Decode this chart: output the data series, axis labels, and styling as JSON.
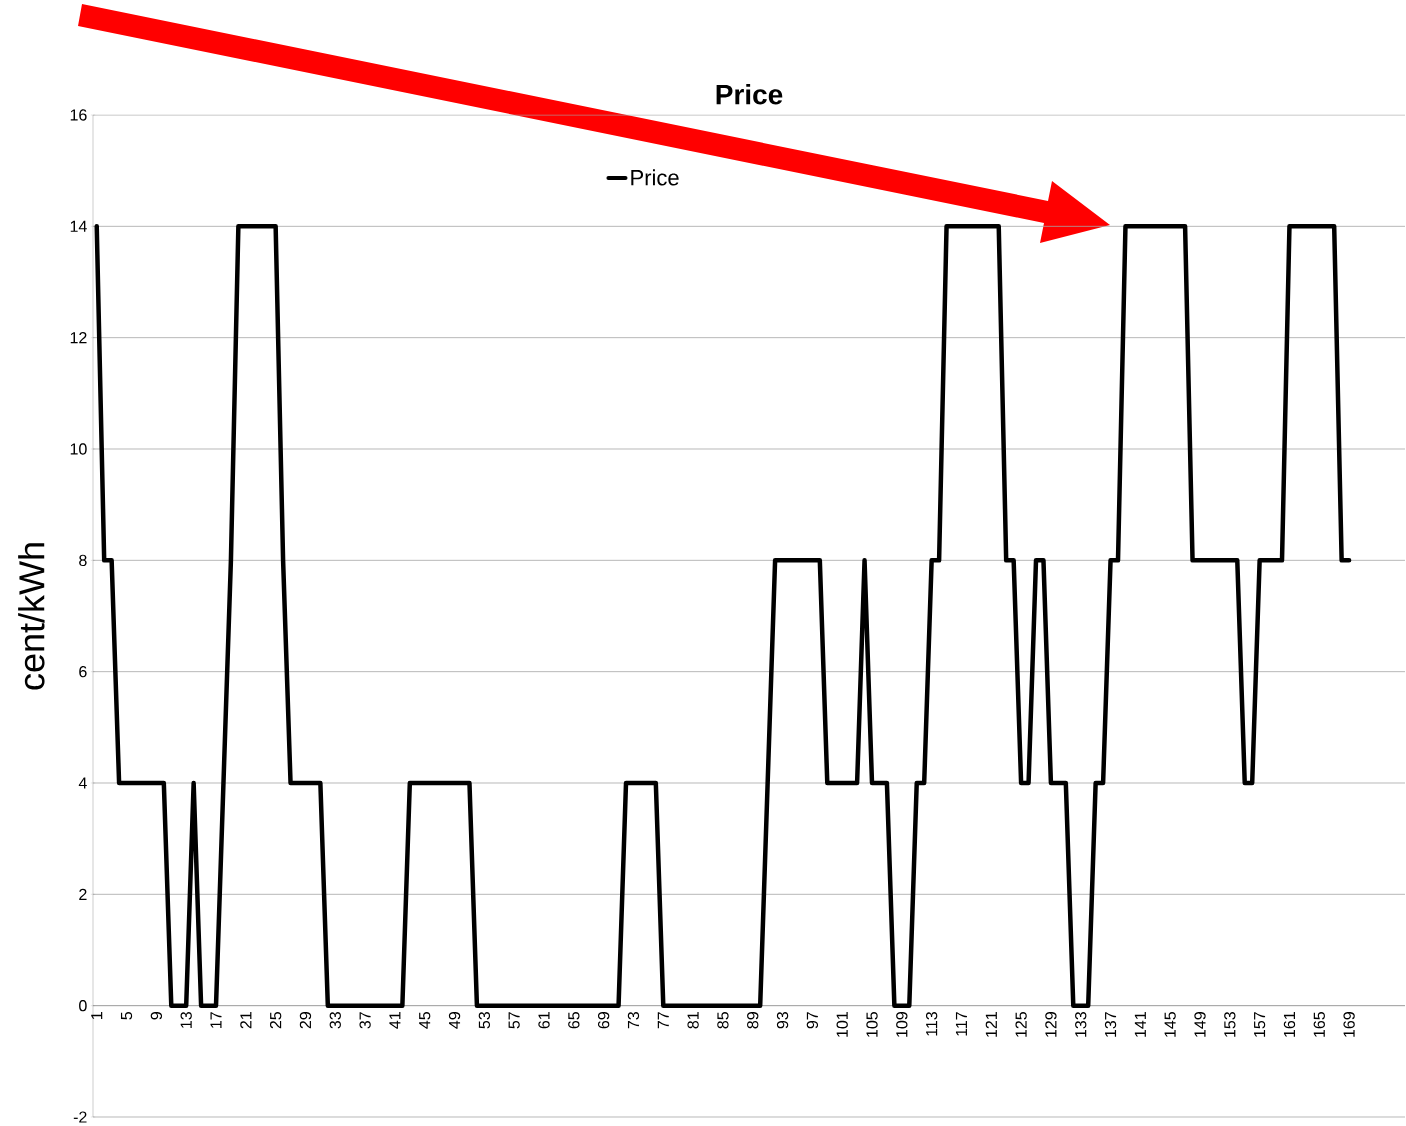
{
  "chart_data": {
    "type": "line",
    "title": "Price",
    "ylabel": "cent/kWh",
    "categories": [
      "1",
      null,
      null,
      null,
      "5",
      null,
      null,
      null,
      "9",
      null,
      null,
      null,
      "13",
      null,
      null,
      null,
      "17",
      null,
      null,
      null,
      "21",
      null,
      null,
      null,
      "25",
      null,
      null,
      null,
      "29",
      null,
      null,
      null,
      "33",
      null,
      null,
      null,
      "37",
      null,
      null,
      null,
      "41",
      null,
      null,
      null,
      "45",
      null,
      null,
      null,
      "49",
      null,
      null,
      null,
      "53",
      null,
      null,
      null,
      "57",
      null,
      null,
      null,
      "61",
      null,
      null,
      null,
      "65",
      null,
      null,
      null,
      "69",
      null,
      null,
      null,
      "73",
      null,
      null,
      null,
      "77",
      null,
      null,
      null,
      "81",
      null,
      null,
      null,
      "85",
      null,
      null,
      null,
      "89",
      null,
      null,
      null,
      "93",
      null,
      null,
      null,
      "97",
      null,
      null,
      null,
      "101",
      null,
      null,
      null,
      "105",
      null,
      null,
      null,
      "109",
      null,
      null,
      null,
      "113",
      null,
      null,
      null,
      "117",
      null,
      null,
      null,
      "121",
      null,
      null,
      null,
      "125",
      null,
      null,
      null,
      "129",
      null,
      null,
      null,
      "133",
      null,
      null,
      null,
      "137",
      null,
      null,
      null,
      "141",
      null,
      null,
      null,
      "145",
      null,
      null,
      null,
      "149",
      null,
      null,
      null,
      "153",
      null,
      null,
      null,
      "157",
      null,
      null,
      null,
      "161",
      null,
      null,
      null,
      "165",
      null,
      null,
      null,
      "169",
      null,
      null,
      null,
      null,
      null,
      null,
      null
    ],
    "series": [
      {
        "name": "Price",
        "color": "#000000",
        "values": [
          14,
          8,
          8,
          4,
          4,
          4,
          4,
          4,
          4,
          4,
          0,
          0,
          0,
          4,
          0,
          0,
          0,
          4,
          8,
          14,
          14,
          14,
          14,
          14,
          14,
          8,
          4,
          4,
          4,
          4,
          4,
          0,
          0,
          0,
          0,
          0,
          0,
          0,
          0,
          0,
          0,
          0,
          4,
          4,
          4,
          4,
          4,
          4,
          4,
          4,
          4,
          0,
          0,
          0,
          0,
          0,
          0,
          0,
          0,
          0,
          0,
          0,
          0,
          0,
          0,
          0,
          0,
          0,
          0,
          0,
          0,
          4,
          4,
          4,
          4,
          4,
          0,
          0,
          0,
          0,
          0,
          0,
          0,
          0,
          0,
          0,
          0,
          0,
          0,
          0,
          4,
          8,
          8,
          8,
          8,
          8,
          8,
          8,
          4,
          4,
          4,
          4,
          4,
          8,
          4,
          4,
          4,
          0,
          0,
          0,
          4,
          4,
          8,
          8,
          14,
          14,
          14,
          14,
          14,
          14,
          14,
          14,
          8,
          8,
          4,
          4,
          8,
          8,
          4,
          4,
          4,
          0,
          0,
          0,
          4,
          4,
          8,
          8,
          14,
          14,
          14,
          14,
          14,
          14,
          14,
          14,
          14,
          8,
          8,
          8,
          8,
          8,
          8,
          8,
          4,
          4,
          8,
          8,
          8,
          8,
          14,
          14,
          14,
          14,
          14,
          14,
          14,
          8,
          8,
          null,
          null,
          null,
          null,
          null,
          null,
          null
        ]
      }
    ],
    "ylim": [
      -2,
      16
    ],
    "yticks": [
      -2,
      0,
      2,
      4,
      6,
      8,
      10,
      12,
      14,
      16
    ],
    "grid": "y",
    "legend": "top",
    "marker": "none",
    "line_style": "solid"
  }
}
